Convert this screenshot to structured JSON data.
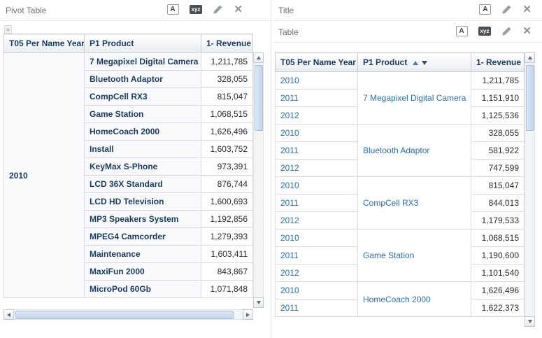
{
  "icons": {
    "format_label": "A",
    "xyz_label": "xyz",
    "close_glyph": "✕",
    "expander_glyph": "»"
  },
  "pivot_panel": {
    "title": "Pivot Table",
    "columns": [
      "T05 Per Name Year",
      "P1 Product",
      "1- Revenue"
    ],
    "year": "2010",
    "rows": [
      {
        "product": "7 Megapixel Digital Camera",
        "revenue": "1,211,785"
      },
      {
        "product": "Bluetooth Adaptor",
        "revenue": "328,055"
      },
      {
        "product": "CompCell RX3",
        "revenue": "815,047"
      },
      {
        "product": "Game Station",
        "revenue": "1,068,515"
      },
      {
        "product": "HomeCoach 2000",
        "revenue": "1,626,496"
      },
      {
        "product": "Install",
        "revenue": "1,603,752"
      },
      {
        "product": "KeyMax S-Phone",
        "revenue": "973,391"
      },
      {
        "product": "LCD 36X Standard",
        "revenue": "876,744"
      },
      {
        "product": "LCD HD Television",
        "revenue": "1,600,693"
      },
      {
        "product": "MP3 Speakers System",
        "revenue": "1,192,856"
      },
      {
        "product": "MPEG4 Camcorder",
        "revenue": "1,279,393"
      },
      {
        "product": "Maintenance",
        "revenue": "1,603,411"
      },
      {
        "product": "MaxiFun 2000",
        "revenue": "843,867"
      },
      {
        "product": "MicroPod 60Gb",
        "revenue": "1,071,848"
      }
    ]
  },
  "title_panel": {
    "title": "Title"
  },
  "table_panel": {
    "title": "Table",
    "columns": [
      "T05 Per Name Year",
      "P1 Product",
      "1- Revenue"
    ],
    "groups": [
      {
        "product": "7 Megapixel Digital Camera",
        "rows": [
          [
            "2010",
            "1,211,785"
          ],
          [
            "2011",
            "1,151,910"
          ],
          [
            "2012",
            "1,125,536"
          ]
        ]
      },
      {
        "product": "Bluetooth Adaptor",
        "rows": [
          [
            "2010",
            "328,055"
          ],
          [
            "2011",
            "581,922"
          ],
          [
            "2012",
            "747,599"
          ]
        ]
      },
      {
        "product": "CompCell RX3",
        "rows": [
          [
            "2010",
            "815,047"
          ],
          [
            "2011",
            "844,013"
          ],
          [
            "2012",
            "1,179,533"
          ]
        ]
      },
      {
        "product": "Game Station",
        "rows": [
          [
            "2010",
            "1,068,515"
          ],
          [
            "2011",
            "1,190,600"
          ],
          [
            "2012",
            "1,101,540"
          ]
        ]
      },
      {
        "product": "HomeCoach 2000",
        "rows": [
          [
            "2010",
            "1,626,496"
          ],
          [
            "2011",
            "1,622,373"
          ]
        ]
      }
    ]
  }
}
